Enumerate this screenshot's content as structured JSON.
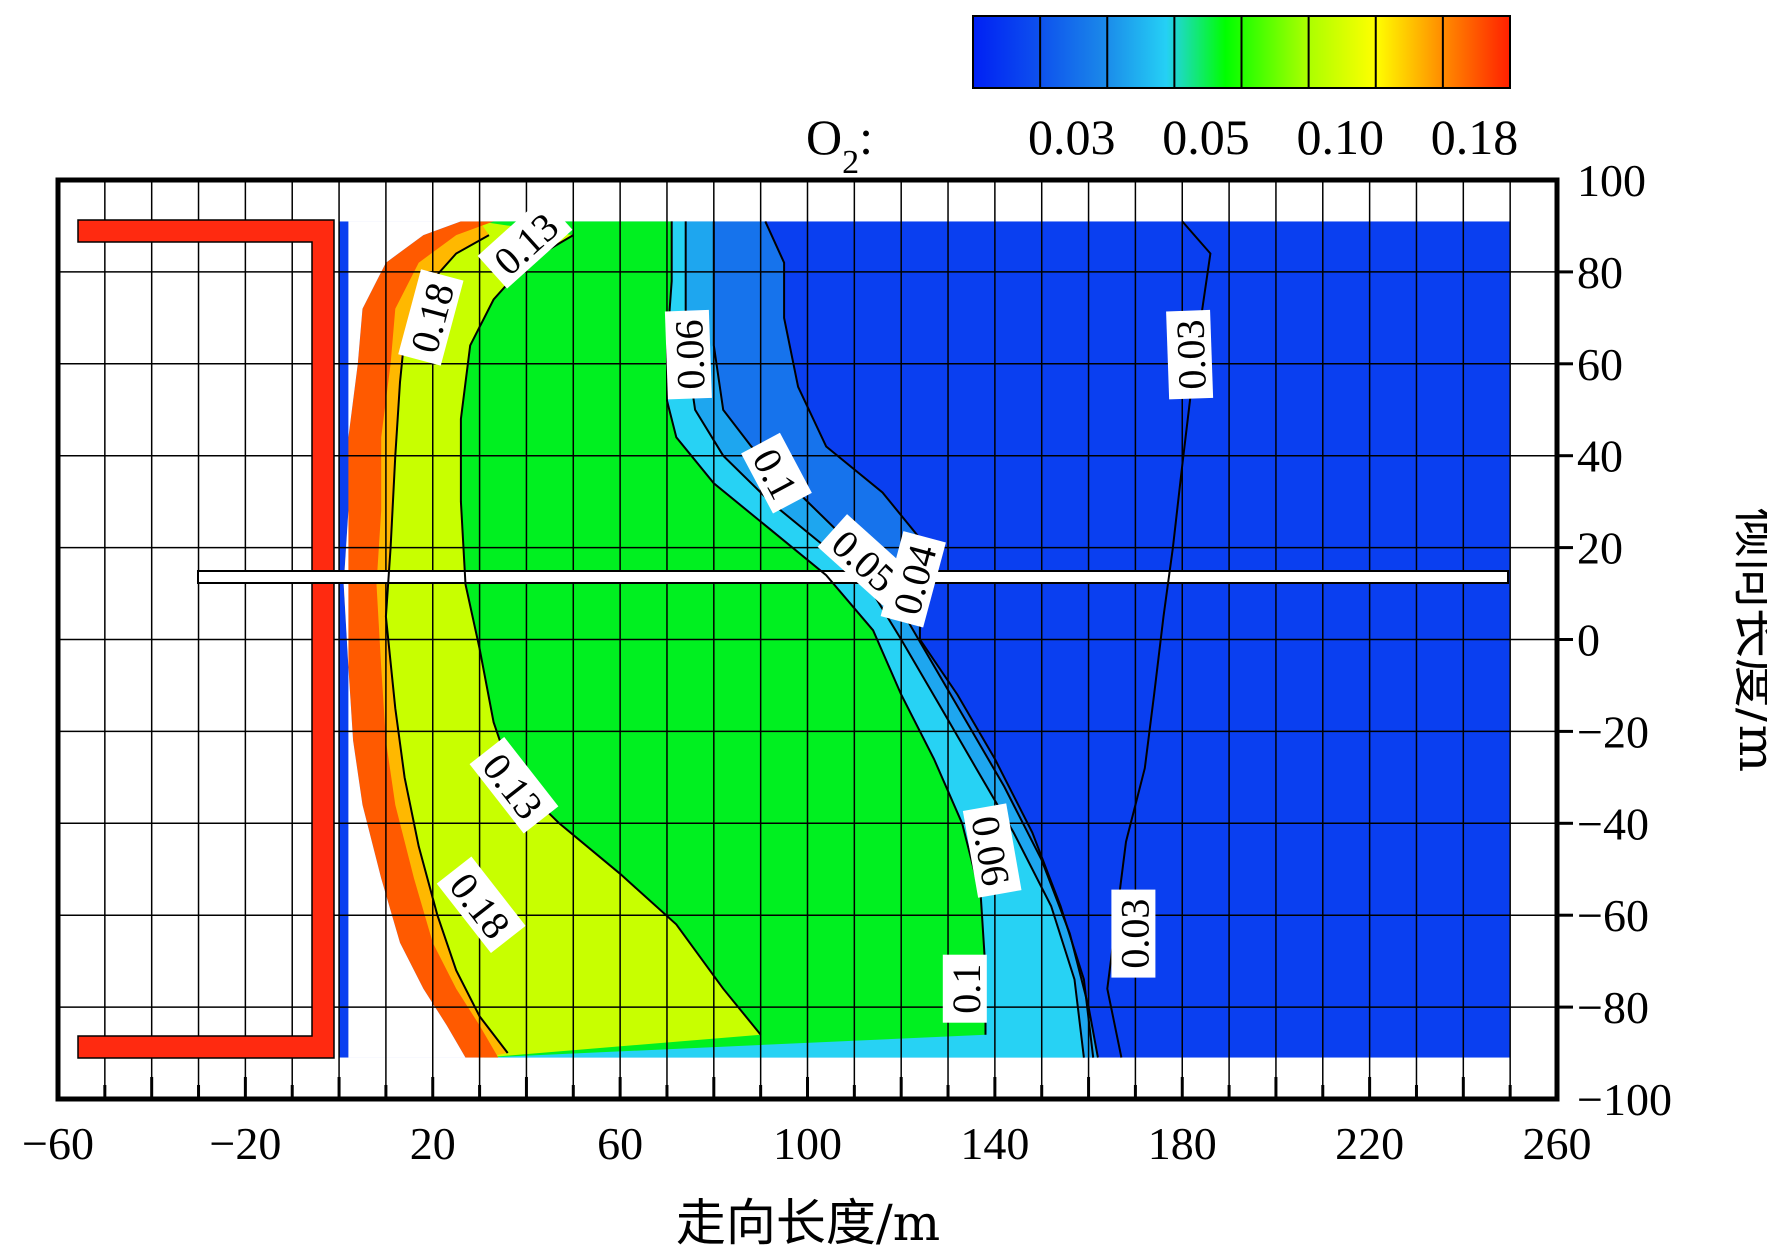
{
  "chart_data": {
    "type": "heatmap",
    "xlabel": "走向长度/m",
    "ylabel": "倾向长度/m",
    "xlim": [
      -60,
      260
    ],
    "ylim": [
      -100,
      100
    ],
    "x_ticks": [
      "−60",
      "−20",
      "20",
      "60",
      "100",
      "140",
      "180",
      "220",
      "260"
    ],
    "x_tick_values": [
      -60,
      -20,
      20,
      60,
      100,
      140,
      180,
      220,
      260
    ],
    "y_ticks": [
      "100",
      "80",
      "60",
      "40",
      "20",
      "0",
      "−20",
      "−40",
      "−60",
      "−80",
      "−100"
    ],
    "y_tick_values": [
      100,
      80,
      60,
      40,
      20,
      0,
      -20,
      -40,
      -60,
      -80,
      -100
    ],
    "grid": true,
    "colorbar": {
      "label_prefix": "O",
      "label_sub": "2",
      "label_suffix": ":",
      "ticks": [
        "0.03",
        "0.05",
        "0.10",
        "0.18"
      ],
      "colors": [
        "#0000ff",
        "#0d55ee",
        "#1a9be8",
        "#25d6f2",
        "#00ff00",
        "#e6ff00",
        "#ffa000",
        "#ff2000"
      ],
      "placement": "top-right"
    },
    "contours": [
      {
        "level": 0.18,
        "label": "0.18",
        "points": [
          [
            32,
            88
          ],
          [
            25,
            84
          ],
          [
            18,
            76
          ],
          [
            14,
            66
          ],
          [
            13,
            56
          ],
          [
            12,
            40
          ],
          [
            11,
            20
          ],
          [
            10,
            5
          ],
          [
            12,
            -15
          ],
          [
            14,
            -30
          ],
          [
            17,
            -45
          ],
          [
            21,
            -60
          ],
          [
            25,
            -72
          ],
          [
            30,
            -82
          ],
          [
            36,
            -90
          ]
        ]
      },
      {
        "level": 0.13,
        "label": "0.13",
        "points": [
          [
            50,
            88
          ],
          [
            40,
            82
          ],
          [
            33,
            74
          ],
          [
            28,
            64
          ],
          [
            26,
            48
          ],
          [
            26,
            30
          ],
          [
            27,
            12
          ],
          [
            30,
            -2
          ],
          [
            33,
            -18
          ],
          [
            37,
            -30
          ],
          [
            47,
            -40
          ],
          [
            60,
            -51
          ],
          [
            72,
            -62
          ],
          [
            82,
            -76
          ],
          [
            90,
            -86
          ]
        ]
      },
      {
        "level": 0.1,
        "label": "0.1",
        "points": [
          [
            71,
            91
          ],
          [
            71,
            78
          ],
          [
            70,
            64
          ],
          [
            70,
            52
          ],
          [
            72,
            44
          ],
          [
            80,
            34
          ],
          [
            92,
            24
          ],
          [
            104,
            14
          ],
          [
            114,
            2
          ],
          [
            120,
            -12
          ],
          [
            127,
            -26
          ],
          [
            133,
            -40
          ],
          [
            137,
            -56
          ],
          [
            138,
            -72
          ],
          [
            138,
            -86
          ]
        ]
      },
      {
        "level": 0.06,
        "label": "0.06",
        "points": [
          [
            74,
            91
          ],
          [
            74,
            78
          ],
          [
            74,
            64
          ],
          [
            76,
            50
          ],
          [
            82,
            40
          ],
          [
            92,
            30
          ],
          [
            104,
            20
          ],
          [
            114,
            10
          ],
          [
            120,
            0
          ],
          [
            128,
            -14
          ],
          [
            136,
            -28
          ],
          [
            144,
            -42
          ],
          [
            152,
            -58
          ],
          [
            157,
            -74
          ],
          [
            159,
            -91
          ]
        ]
      },
      {
        "level": 0.05,
        "label": "0.05",
        "points": [
          [
            80,
            91
          ],
          [
            80,
            78
          ],
          [
            80,
            64
          ],
          [
            82,
            50
          ],
          [
            88,
            42
          ],
          [
            98,
            32
          ],
          [
            108,
            22
          ],
          [
            118,
            10
          ],
          [
            126,
            -4
          ],
          [
            134,
            -18
          ],
          [
            142,
            -32
          ],
          [
            150,
            -48
          ],
          [
            156,
            -64
          ],
          [
            160,
            -80
          ],
          [
            162,
            -91
          ]
        ]
      },
      {
        "level": 0.04,
        "label": "0.04",
        "points": [
          [
            91,
            91
          ],
          [
            95,
            82
          ],
          [
            95,
            70
          ],
          [
            98,
            55
          ],
          [
            104,
            42
          ],
          [
            116,
            32
          ],
          [
            124,
            22
          ],
          [
            124,
            10
          ],
          [
            124,
            0
          ],
          [
            132,
            -12
          ],
          [
            140,
            -26
          ],
          [
            148,
            -42
          ],
          [
            154,
            -58
          ],
          [
            159,
            -74
          ],
          [
            161,
            -91
          ]
        ]
      },
      {
        "level": 0.03,
        "label": "0.03",
        "points": [
          [
            180,
            91
          ],
          [
            186,
            84
          ],
          [
            184,
            70
          ],
          [
            182,
            55
          ],
          [
            180,
            38
          ],
          [
            178,
            20
          ],
          [
            176,
            5
          ],
          [
            174,
            -12
          ],
          [
            172,
            -28
          ],
          [
            168,
            -44
          ],
          [
            166,
            -60
          ],
          [
            164,
            -76
          ],
          [
            167,
            -91
          ]
        ]
      }
    ]
  }
}
